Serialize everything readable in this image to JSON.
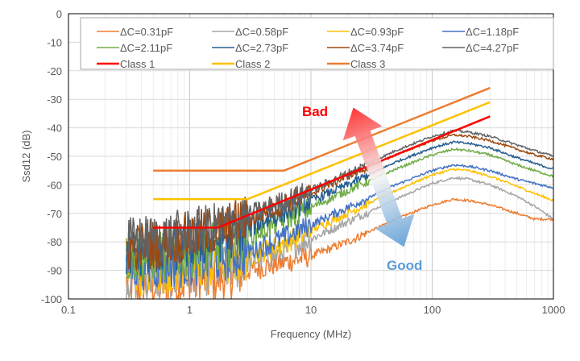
{
  "chart_data": {
    "type": "line",
    "xlabel": "Frequency (MHz)",
    "ylabel": "Ssd12 (dB)",
    "xscale": "log",
    "xlim": [
      0.1,
      1000
    ],
    "ylim": [
      -100,
      0
    ],
    "xticks": [
      "0.1",
      "1",
      "10",
      "100",
      "1000"
    ],
    "yticks": [
      "0",
      "-10",
      "-20",
      "-30",
      "-40",
      "-50",
      "-60",
      "-70",
      "-80",
      "-90",
      "-100"
    ],
    "grid": true,
    "legend": "top",
    "x": [
      0.3,
      0.5,
      1,
      2,
      3,
      5,
      10,
      20,
      50,
      100,
      150,
      200,
      300,
      500,
      700,
      1000
    ],
    "series": [
      {
        "name": "ΔC=0.31pF",
        "color": "#ED7D31",
        "values": [
          -95,
          -95,
          -94,
          -92,
          -90,
          -88,
          -85,
          -80,
          -72,
          -67,
          -65,
          -65.5,
          -67,
          -70,
          -72,
          -72
        ]
      },
      {
        "name": "ΔC=0.58pF",
        "color": "#A5A5A5",
        "values": [
          -92,
          -92,
          -91,
          -89,
          -87,
          -85,
          -79,
          -73,
          -65,
          -59.5,
          -57.5,
          -58,
          -60,
          -64,
          -67.5,
          -72
        ]
      },
      {
        "name": "ΔC=0.93pF",
        "color": "#FFC000",
        "values": [
          -90,
          -90,
          -89,
          -87,
          -85,
          -82,
          -76,
          -70,
          -62,
          -56.5,
          -54.5,
          -55,
          -57,
          -60.5,
          -63,
          -65.5
        ]
      },
      {
        "name": "ΔC=1.18pF",
        "color": "#4472C4",
        "values": [
          -88,
          -88,
          -87,
          -85,
          -83,
          -80,
          -74,
          -68,
          -60,
          -55,
          -53,
          -53.5,
          -55,
          -58,
          -59.5,
          -61
        ]
      },
      {
        "name": "ΔC=2.11pF",
        "color": "#70AD47",
        "values": [
          -86,
          -85,
          -84,
          -81,
          -78,
          -74,
          -68,
          -62,
          -54.5,
          -49.5,
          -47.5,
          -48,
          -49.5,
          -53,
          -55,
          -57
        ]
      },
      {
        "name": "ΔC=2.73pF",
        "color": "#255E91",
        "values": [
          -84,
          -83,
          -81,
          -78,
          -75,
          -71,
          -65.5,
          -60,
          -52,
          -47,
          -45,
          -45.5,
          -47,
          -50.5,
          -52.5,
          -54.5
        ]
      },
      {
        "name": "ΔC=3.74pF",
        "color": "#9E480E",
        "values": [
          -82,
          -81,
          -78,
          -75,
          -72,
          -68,
          -63,
          -57,
          -49.5,
          -44.5,
          -42.5,
          -43,
          -44.5,
          -47.5,
          -49.5,
          -51
        ]
      },
      {
        "name": "ΔC=4.27pF",
        "color": "#636363",
        "values": [
          -80,
          -79,
          -77,
          -74,
          -71,
          -67,
          -62,
          -56,
          -48,
          -43,
          -41,
          -41.5,
          -43,
          -46,
          -48,
          -50
        ]
      }
    ],
    "limits": [
      {
        "name": "Class 1",
        "color": "#FF0000",
        "x": [
          0.5,
          1.7,
          300
        ],
        "values": [
          -75,
          -75,
          -36
        ]
      },
      {
        "name": "Class 2",
        "color": "#FFC000",
        "x": [
          0.5,
          3,
          300
        ],
        "values": [
          -65,
          -65,
          -31
        ]
      },
      {
        "name": "Class 3",
        "color": "#ED7D31",
        "x": [
          0.5,
          6,
          300
        ],
        "values": [
          -55,
          -55,
          -26
        ]
      }
    ],
    "annotations": [
      {
        "text": "Bad",
        "color": "#FF0000"
      },
      {
        "text": "Good",
        "color": "#5B9BD5"
      }
    ]
  }
}
